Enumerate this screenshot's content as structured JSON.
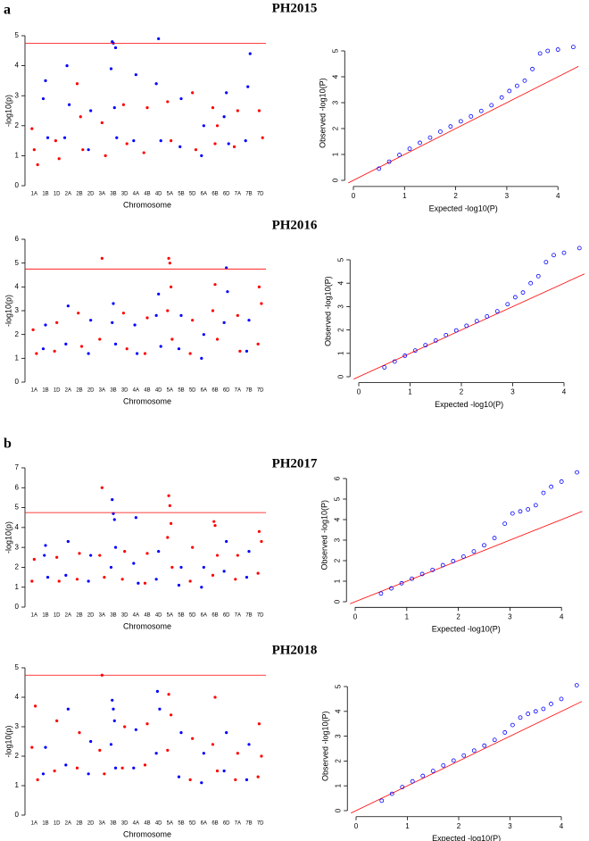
{
  "panel_labels": [
    "a",
    "b"
  ],
  "chart_data": [
    {
      "type": "manhattan",
      "title": "PH2015",
      "x_label": "Chromosome",
      "y_label": "-log10(p)",
      "categories": [
        "1A",
        "1B",
        "1D",
        "2A",
        "2B",
        "2D",
        "3A",
        "3B",
        "3D",
        "4A",
        "4B",
        "4D",
        "5A",
        "5B",
        "5D",
        "6A",
        "6B",
        "6D",
        "7A",
        "7B",
        "7D"
      ],
      "ylim": [
        0,
        5
      ],
      "yticks": [
        0,
        1,
        2,
        3,
        4,
        5
      ],
      "threshold": 4.75,
      "threshold_color": "#ff0000",
      "series": [
        {
          "color": "#ff0000",
          "x": [
            0.3,
            0.5,
            0.8,
            2.4,
            2.7,
            4.3,
            4.6,
            4.8,
            6.5,
            6.8,
            8.4,
            8.7,
            10.5,
            10.2,
            12.3,
            12.6,
            14.5,
            14.8,
            16.3,
            16.7,
            16.5,
            18.5,
            18.2,
            20.4,
            20.7
          ],
          "values": [
            1.9,
            1.2,
            0.7,
            1.5,
            0.9,
            3.4,
            2.3,
            1.2,
            2.1,
            1.0,
            2.7,
            1.4,
            2.6,
            1.1,
            2.8,
            1.5,
            3.1,
            1.2,
            2.6,
            2.0,
            1.4,
            2.5,
            1.3,
            2.5,
            1.6
          ]
        },
        {
          "color": "#0000ff",
          "x": [
            1.5,
            1.3,
            1.7,
            3.4,
            3.6,
            3.2,
            5.5,
            5.3,
            7.4,
            7.5,
            7.7,
            7.3,
            7.6,
            7.8,
            9.5,
            9.3,
            11.5,
            11.3,
            11.7,
            13.5,
            13.4,
            15.5,
            15.3,
            17.5,
            17.3,
            17.7,
            19.6,
            19.4,
            19.2
          ],
          "values": [
            3.5,
            2.9,
            1.6,
            4.0,
            2.7,
            1.6,
            2.5,
            1.2,
            4.8,
            4.75,
            4.6,
            3.9,
            2.6,
            1.6,
            3.7,
            1.5,
            4.9,
            3.4,
            1.5,
            2.9,
            1.3,
            2.0,
            1.0,
            3.1,
            2.3,
            1.4,
            4.4,
            3.3,
            1.5
          ]
        }
      ]
    },
    {
      "type": "qq",
      "x_label": "Expected -log10(P)",
      "y_label": "Observed -log10(P)",
      "color": "#0000ff",
      "line_color": "#ff0000",
      "xlim": [
        -0.1,
        4.4
      ],
      "ylim": [
        -0.1,
        5.3
      ],
      "xticks": [
        0,
        1,
        2,
        3,
        4
      ],
      "yticks": [
        0,
        1,
        2,
        3,
        4,
        5
      ],
      "x": [
        0.5,
        0.7,
        0.9,
        1.1,
        1.3,
        1.5,
        1.7,
        1.9,
        2.1,
        2.3,
        2.5,
        2.7,
        2.9,
        3.05,
        3.2,
        3.35,
        3.5,
        3.65,
        3.8,
        4.0,
        4.3
      ],
      "values": [
        0.45,
        0.72,
        0.98,
        1.22,
        1.45,
        1.65,
        1.88,
        2.08,
        2.28,
        2.47,
        2.68,
        2.9,
        3.2,
        3.45,
        3.65,
        3.85,
        4.3,
        4.9,
        5.0,
        5.05,
        5.15
      ]
    },
    {
      "type": "manhattan",
      "title": "PH2016",
      "x_label": "Chromosome",
      "y_label": "-log10(p)",
      "categories": [
        "1A",
        "1B",
        "1D",
        "2A",
        "2B",
        "2D",
        "3A",
        "3B",
        "3D",
        "4A",
        "4B",
        "4D",
        "5A",
        "5B",
        "5D",
        "6A",
        "6B",
        "6D",
        "7A",
        "7B",
        "7D"
      ],
      "ylim": [
        0,
        6
      ],
      "yticks": [
        0,
        1,
        2,
        3,
        4,
        5,
        6
      ],
      "threshold": 4.75,
      "threshold_color": "#ff0000",
      "series": [
        {
          "color": "#ff0000",
          "x": [
            0.4,
            0.7,
            2.5,
            2.3,
            4.4,
            4.7,
            6.5,
            6.3,
            8.4,
            8.7,
            10.5,
            10.3,
            12.4,
            12.5,
            12.6,
            12.3,
            12.7,
            14.5,
            14.3,
            16.5,
            16.3,
            16.7,
            18.5,
            18.7,
            20.4,
            20.6,
            20.3
          ],
          "values": [
            2.2,
            1.2,
            2.5,
            1.3,
            2.9,
            1.5,
            5.2,
            1.8,
            2.9,
            1.4,
            2.7,
            1.2,
            5.2,
            5.0,
            4.0,
            3.0,
            1.8,
            2.6,
            1.2,
            4.1,
            3.0,
            1.8,
            2.8,
            1.3,
            4.0,
            3.3,
            1.6
          ]
        },
        {
          "color": "#0000ff",
          "x": [
            1.5,
            1.3,
            3.5,
            3.3,
            5.5,
            5.3,
            7.5,
            7.4,
            7.7,
            9.4,
            9.6,
            11.5,
            11.3,
            11.7,
            13.5,
            13.3,
            15.5,
            15.3,
            17.5,
            17.6,
            17.3,
            19.5,
            19.3
          ],
          "values": [
            2.4,
            1.4,
            3.2,
            1.6,
            2.6,
            1.2,
            3.3,
            2.5,
            1.6,
            2.4,
            1.2,
            3.7,
            2.8,
            1.5,
            2.8,
            1.4,
            2.0,
            1.0,
            4.8,
            3.8,
            2.5,
            2.6,
            1.3
          ]
        }
      ]
    },
    {
      "type": "qq",
      "x_label": "Expected -log10(P)",
      "y_label": "Observed -log10(P)",
      "color": "#0000ff",
      "line_color": "#ff0000",
      "xlim": [
        -0.1,
        4.4
      ],
      "ylim": [
        -0.1,
        5.7
      ],
      "xticks": [
        0,
        1,
        2,
        3,
        4
      ],
      "yticks": [
        0,
        1,
        2,
        3,
        4,
        5
      ],
      "x": [
        0.5,
        0.7,
        0.9,
        1.1,
        1.3,
        1.5,
        1.7,
        1.9,
        2.1,
        2.3,
        2.5,
        2.7,
        2.9,
        3.05,
        3.2,
        3.35,
        3.5,
        3.65,
        3.8,
        4.0,
        4.3
      ],
      "values": [
        0.4,
        0.65,
        0.9,
        1.12,
        1.35,
        1.55,
        1.78,
        1.98,
        2.18,
        2.38,
        2.58,
        2.8,
        3.1,
        3.4,
        3.6,
        4.0,
        4.3,
        4.9,
        5.2,
        5.3,
        5.5
      ]
    },
    {
      "type": "manhattan",
      "title": "PH2017",
      "x_label": "Chromosome",
      "y_label": "-log10(p)",
      "categories": [
        "1A",
        "1B",
        "1D",
        "2A",
        "2B",
        "2D",
        "3A",
        "3B",
        "3D",
        "4A",
        "4B",
        "4D",
        "5A",
        "5B",
        "5D",
        "6A",
        "6B",
        "6D",
        "7A",
        "7B",
        "7D"
      ],
      "ylim": [
        0,
        7
      ],
      "yticks": [
        0,
        1,
        2,
        3,
        4,
        5,
        6,
        7
      ],
      "threshold": 4.75,
      "threshold_color": "#ff0000",
      "series": [
        {
          "color": "#ff0000",
          "x": [
            0.5,
            0.3,
            2.5,
            2.7,
            4.5,
            4.3,
            6.5,
            6.3,
            6.7,
            8.5,
            8.3,
            10.5,
            10.3,
            12.4,
            12.5,
            12.6,
            12.3,
            12.7,
            14.5,
            14.3,
            16.4,
            16.5,
            16.7,
            16.3,
            18.5,
            18.3,
            20.4,
            20.6,
            20.3
          ],
          "values": [
            2.4,
            1.3,
            2.5,
            1.3,
            2.7,
            1.4,
            6.0,
            2.6,
            1.5,
            2.8,
            1.4,
            2.7,
            1.2,
            5.6,
            5.1,
            4.2,
            3.5,
            2.0,
            3.0,
            1.3,
            4.3,
            4.1,
            2.6,
            1.6,
            2.6,
            1.4,
            3.8,
            3.3,
            1.7
          ]
        },
        {
          "color": "#0000ff",
          "x": [
            1.5,
            1.4,
            1.7,
            3.5,
            3.3,
            5.5,
            5.3,
            7.4,
            7.5,
            7.6,
            7.7,
            7.3,
            9.5,
            9.3,
            9.7,
            11.5,
            11.3,
            13.5,
            13.3,
            15.5,
            15.3,
            17.5,
            17.3,
            19.5,
            19.3
          ],
          "values": [
            3.1,
            2.6,
            1.5,
            3.3,
            1.6,
            2.6,
            1.3,
            5.4,
            4.7,
            4.4,
            3.0,
            2.0,
            4.5,
            2.2,
            1.2,
            2.8,
            1.4,
            2.0,
            1.1,
            2.0,
            1.0,
            3.3,
            1.8,
            2.8,
            1.5
          ]
        }
      ]
    },
    {
      "type": "qq",
      "x_label": "Expected -log10(P)",
      "y_label": "Observed -log10(P)",
      "color": "#0000ff",
      "line_color": "#ff0000",
      "xlim": [
        -0.1,
        4.4
      ],
      "ylim": [
        -0.1,
        6.6
      ],
      "xticks": [
        0,
        1,
        2,
        3,
        4
      ],
      "yticks": [
        0,
        1,
        2,
        3,
        4,
        5,
        6
      ],
      "x": [
        0.5,
        0.7,
        0.9,
        1.1,
        1.3,
        1.5,
        1.7,
        1.9,
        2.1,
        2.3,
        2.5,
        2.7,
        2.9,
        3.05,
        3.2,
        3.35,
        3.5,
        3.65,
        3.8,
        4.0,
        4.3
      ],
      "values": [
        0.4,
        0.65,
        0.9,
        1.12,
        1.35,
        1.55,
        1.78,
        1.98,
        2.2,
        2.45,
        2.75,
        3.1,
        3.8,
        4.3,
        4.4,
        4.5,
        4.7,
        5.3,
        5.6,
        5.85,
        6.3
      ]
    },
    {
      "type": "manhattan",
      "title": "PH2018",
      "x_label": "Chromosome",
      "y_label": "-log10(p)",
      "categories": [
        "1A",
        "1B",
        "1D",
        "2A",
        "2B",
        "2D",
        "3A",
        "3B",
        "3D",
        "4A",
        "4B",
        "4D",
        "5A",
        "5B",
        "5D",
        "6A",
        "6B",
        "6D",
        "7A",
        "7B",
        "7D"
      ],
      "ylim": [
        0,
        5
      ],
      "yticks": [
        0,
        1,
        2,
        3,
        4,
        5
      ],
      "threshold": 4.75,
      "threshold_color": "#ff0000",
      "series": [
        {
          "color": "#ff0000",
          "x": [
            0.3,
            0.6,
            0.8,
            2.5,
            2.3,
            4.5,
            4.3,
            6.5,
            6.3,
            6.7,
            8.5,
            8.3,
            10.5,
            10.3,
            12.4,
            12.6,
            12.3,
            14.5,
            14.3,
            16.5,
            16.3,
            16.7,
            18.5,
            18.3,
            20.4,
            20.6,
            20.3
          ],
          "values": [
            2.3,
            3.7,
            1.2,
            3.2,
            1.5,
            2.8,
            1.6,
            4.75,
            2.2,
            1.4,
            3.0,
            1.6,
            3.1,
            1.7,
            4.1,
            3.4,
            2.2,
            2.6,
            1.2,
            4.0,
            2.4,
            1.5,
            2.1,
            1.2,
            3.1,
            2.0,
            1.3
          ]
        },
        {
          "color": "#0000ff",
          "x": [
            1.5,
            1.3,
            3.5,
            3.3,
            5.5,
            5.3,
            7.4,
            7.5,
            7.6,
            7.3,
            7.7,
            9.5,
            9.3,
            11.4,
            11.6,
            11.3,
            13.5,
            13.3,
            15.5,
            15.3,
            17.5,
            17.3,
            19.5,
            19.3
          ],
          "values": [
            2.3,
            1.4,
            3.6,
            1.7,
            2.5,
            1.4,
            3.9,
            3.6,
            3.2,
            2.4,
            1.6,
            2.9,
            1.6,
            4.2,
            3.6,
            2.1,
            2.8,
            1.3,
            2.1,
            1.1,
            2.8,
            1.5,
            2.4,
            1.2
          ]
        }
      ]
    },
    {
      "type": "qq",
      "x_label": "Expected -log10(P)",
      "y_label": "Observed -log10(P)",
      "color": "#0000ff",
      "line_color": "#ff0000",
      "xlim": [
        -0.1,
        4.4
      ],
      "ylim": [
        -0.1,
        5.3
      ],
      "xticks": [
        0,
        1,
        2,
        3,
        4
      ],
      "yticks": [
        0,
        1,
        2,
        3,
        4,
        5
      ],
      "x": [
        0.5,
        0.7,
        0.9,
        1.1,
        1.3,
        1.5,
        1.7,
        1.9,
        2.1,
        2.3,
        2.5,
        2.7,
        2.9,
        3.05,
        3.2,
        3.35,
        3.5,
        3.65,
        3.8,
        4.0,
        4.3
      ],
      "values": [
        0.4,
        0.68,
        0.95,
        1.18,
        1.4,
        1.6,
        1.82,
        2.02,
        2.22,
        2.42,
        2.62,
        2.85,
        3.15,
        3.45,
        3.75,
        3.9,
        4.0,
        4.1,
        4.3,
        4.5,
        5.05
      ]
    }
  ]
}
